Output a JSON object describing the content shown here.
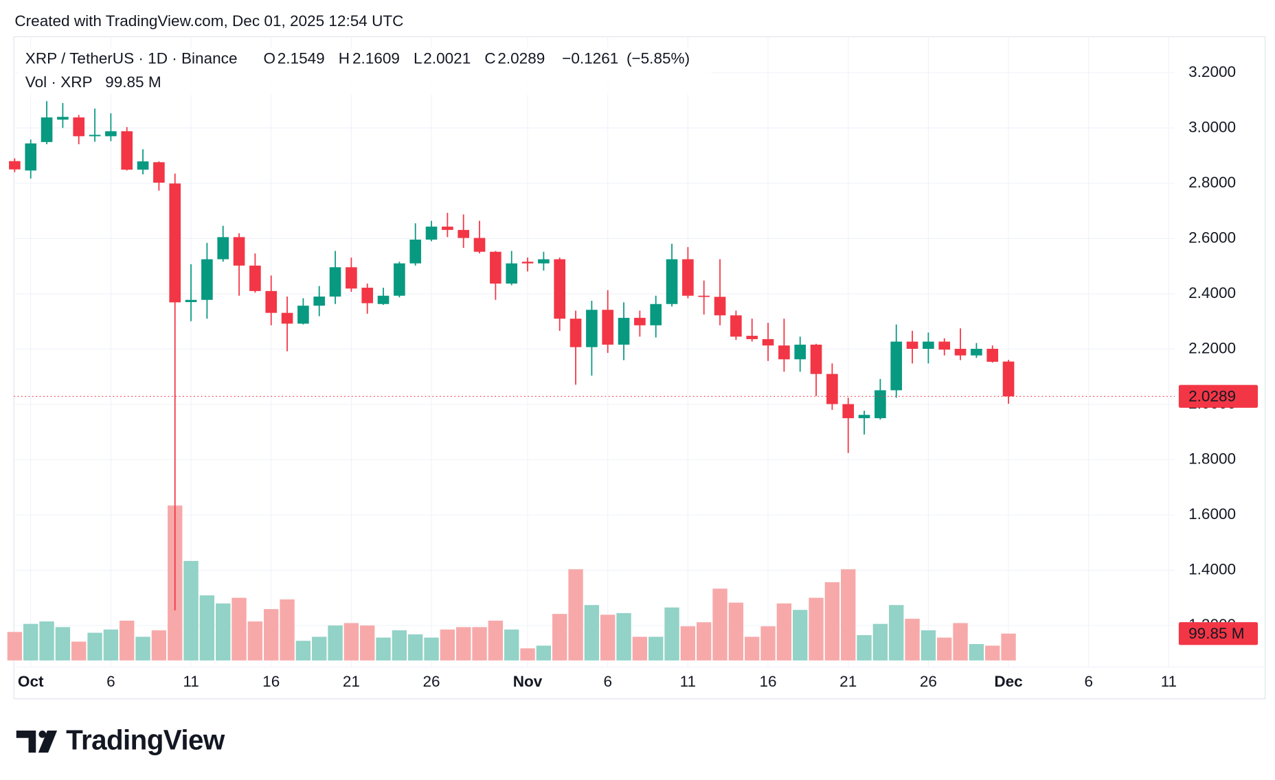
{
  "chart_data": {
    "type": "candlestick",
    "title": "Created with TradingView.com, Dec 01, 2025 12:54 UTC",
    "symbol": "XRP / TetherUS · 1D · Binance",
    "legend_labels": {
      "open": "O",
      "high": "H",
      "low": "L",
      "close": "C"
    },
    "change": {
      "value": -0.1261,
      "label": "−0.1261"
    },
    "change_percent": {
      "value": -5.85,
      "label": "(−5.85%)"
    },
    "x": [
      "Sep 30",
      "Oct 1",
      "Oct 2",
      "Oct 3",
      "Oct 4",
      "Oct 5",
      "Oct 6",
      "Oct 7",
      "Oct 8",
      "Oct 9",
      "Oct 10",
      "Oct 11",
      "Oct 12",
      "Oct 13",
      "Oct 14",
      "Oct 15",
      "Oct 16",
      "Oct 17",
      "Oct 18",
      "Oct 19",
      "Oct 20",
      "Oct 21",
      "Oct 22",
      "Oct 23",
      "Oct 24",
      "Oct 25",
      "Oct 26",
      "Oct 27",
      "Oct 28",
      "Oct 29",
      "Oct 30",
      "Oct 31",
      "Nov 1",
      "Nov 2",
      "Nov 3",
      "Nov 4",
      "Nov 5",
      "Nov 6",
      "Nov 7",
      "Nov 8",
      "Nov 9",
      "Nov 10",
      "Nov 11",
      "Nov 12",
      "Nov 13",
      "Nov 14",
      "Nov 15",
      "Nov 16",
      "Nov 17",
      "Nov 18",
      "Nov 19",
      "Nov 20",
      "Nov 21",
      "Nov 22",
      "Nov 23",
      "Nov 24",
      "Nov 25",
      "Nov 26",
      "Nov 27",
      "Nov 28",
      "Nov 29",
      "Nov 30",
      "Dec 1"
    ],
    "ohlc": {
      "open": [
        2.88,
        2.846,
        2.949,
        3.03,
        3.038,
        2.97,
        2.97,
        2.988,
        2.849,
        2.876,
        2.799,
        2.37,
        2.378,
        2.525,
        2.605,
        2.502,
        2.41,
        2.331,
        2.292,
        2.357,
        2.39,
        2.496,
        2.422,
        2.363,
        2.393,
        2.51,
        2.596,
        2.643,
        2.631,
        2.602,
        2.552,
        2.437,
        2.516,
        2.51,
        2.525,
        2.31,
        2.207,
        2.342,
        2.216,
        2.313,
        2.286,
        2.363,
        2.525,
        2.393,
        2.389,
        2.322,
        2.248,
        2.236,
        2.213,
        2.163,
        2.216,
        2.11,
        2.001,
        1.95,
        1.95,
        2.051,
        2.227,
        2.201,
        2.227,
        2.201,
        2.177,
        2.201,
        2.1549
      ],
      "high": [
        2.89,
        2.958,
        3.097,
        3.09,
        3.047,
        3.07,
        3.053,
        3.003,
        2.923,
        2.879,
        2.835,
        2.507,
        2.584,
        2.646,
        2.619,
        2.546,
        2.466,
        2.39,
        2.384,
        2.428,
        2.555,
        2.531,
        2.437,
        2.422,
        2.516,
        2.655,
        2.664,
        2.693,
        2.687,
        2.664,
        2.555,
        2.555,
        2.531,
        2.552,
        2.531,
        2.339,
        2.375,
        2.413,
        2.369,
        2.339,
        2.393,
        2.581,
        2.569,
        2.448,
        2.525,
        2.339,
        2.31,
        2.295,
        2.31,
        2.245,
        2.219,
        2.148,
        2.024,
        1.977,
        2.092,
        2.289,
        2.266,
        2.26,
        2.239,
        2.275,
        2.222,
        2.213,
        2.1609
      ],
      "low": [
        2.84,
        2.817,
        2.941,
        3.0,
        2.941,
        2.95,
        2.952,
        2.846,
        2.832,
        2.773,
        1.255,
        2.301,
        2.31,
        2.516,
        2.393,
        2.404,
        2.286,
        2.192,
        2.289,
        2.319,
        2.363,
        2.407,
        2.328,
        2.36,
        2.387,
        2.502,
        2.59,
        2.605,
        2.566,
        2.546,
        2.378,
        2.431,
        2.481,
        2.484,
        2.266,
        2.071,
        2.104,
        2.186,
        2.16,
        2.245,
        2.242,
        2.354,
        2.384,
        2.325,
        2.286,
        2.233,
        2.227,
        2.157,
        2.118,
        2.118,
        2.03,
        1.98,
        1.824,
        1.891,
        1.945,
        2.024,
        2.148,
        2.148,
        2.177,
        2.16,
        2.168,
        2.151,
        2.0021
      ],
      "close": [
        2.85,
        2.944,
        3.038,
        3.04,
        2.97,
        2.975,
        2.988,
        2.849,
        2.879,
        2.802,
        2.369,
        2.378,
        2.525,
        2.605,
        2.502,
        2.41,
        2.331,
        2.292,
        2.357,
        2.39,
        2.496,
        2.419,
        2.366,
        2.393,
        2.51,
        2.596,
        2.643,
        2.631,
        2.602,
        2.552,
        2.437,
        2.51,
        2.51,
        2.525,
        2.31,
        2.207,
        2.342,
        2.216,
        2.313,
        2.286,
        2.363,
        2.525,
        2.393,
        2.389,
        2.322,
        2.245,
        2.236,
        2.213,
        2.163,
        2.216,
        2.11,
        2.001,
        1.95,
        1.962,
        2.051,
        2.227,
        2.201,
        2.227,
        2.198,
        2.177,
        2.201,
        2.154,
        2.0289
      ]
    },
    "volume": {
      "name": "Vol · XRP",
      "values": [
        106,
        136,
        145,
        124,
        70,
        103,
        115,
        148,
        88,
        112,
        576,
        370,
        242,
        212,
        233,
        145,
        191,
        227,
        73,
        88,
        130,
        139,
        130,
        85,
        112,
        97,
        85,
        115,
        124,
        124,
        148,
        115,
        45,
        55,
        173,
        339,
        206,
        170,
        176,
        88,
        88,
        197,
        127,
        142,
        267,
        215,
        88,
        127,
        212,
        188,
        233,
        291,
        339,
        94,
        136,
        206,
        155,
        112,
        85,
        139,
        61,
        55,
        99.85
      ],
      "value_labels": [
        null,
        null,
        null,
        null,
        null,
        null,
        null,
        null,
        null,
        null,
        null,
        null,
        null,
        null,
        null,
        null,
        null,
        null,
        null,
        null,
        null,
        null,
        null,
        null,
        null,
        null,
        null,
        null,
        null,
        null,
        null,
        null,
        null,
        null,
        null,
        null,
        null,
        null,
        null,
        null,
        null,
        null,
        null,
        null,
        null,
        null,
        null,
        null,
        null,
        null,
        null,
        null,
        null,
        null,
        null,
        null,
        null,
        null,
        null,
        null,
        null,
        null,
        "99.85 M"
      ]
    },
    "up_color": "#089981",
    "down_color": "#f23645",
    "up_volume_color": "#92d2c7",
    "down_volume_color": "#f7a9a9",
    "ylim": [
      1.05,
      3.33
    ],
    "yticks": [
      {
        "value": 1.2,
        "label": "1.2000"
      },
      {
        "value": 1.4,
        "label": "1.4000"
      },
      {
        "value": 1.6,
        "label": "1.6000"
      },
      {
        "value": 1.8,
        "label": "1.8000"
      },
      {
        "value": 2.0,
        "label": "2.0000"
      },
      {
        "value": 2.2,
        "label": "2.2000"
      },
      {
        "value": 2.4,
        "label": "2.4000"
      },
      {
        "value": 2.6,
        "label": "2.6000"
      },
      {
        "value": 2.8,
        "label": "2.8000"
      },
      {
        "value": 3.0,
        "label": "3.0000"
      },
      {
        "value": 3.2,
        "label": "3.2000"
      }
    ],
    "xticks": [
      {
        "value": "Oct 1",
        "label": "Oct"
      },
      {
        "value": "Oct 6",
        "label": "6"
      },
      {
        "value": "Oct 11",
        "label": "11"
      },
      {
        "value": "Oct 16",
        "label": "16"
      },
      {
        "value": "Oct 21",
        "label": "21"
      },
      {
        "value": "Oct 26",
        "label": "26"
      },
      {
        "value": "Nov 1",
        "label": "Nov"
      },
      {
        "value": "Nov 6",
        "label": "6"
      },
      {
        "value": "Nov 11",
        "label": "11"
      },
      {
        "value": "Nov 16",
        "label": "16"
      },
      {
        "value": "Nov 21",
        "label": "21"
      },
      {
        "value": "Nov 26",
        "label": "26"
      },
      {
        "value": "Dec 1",
        "label": "Dec"
      },
      {
        "value": "Dec 6",
        "label": "6"
      },
      {
        "value": "Dec 11",
        "label": "11"
      }
    ],
    "grid": true,
    "brand": "TradingView"
  }
}
